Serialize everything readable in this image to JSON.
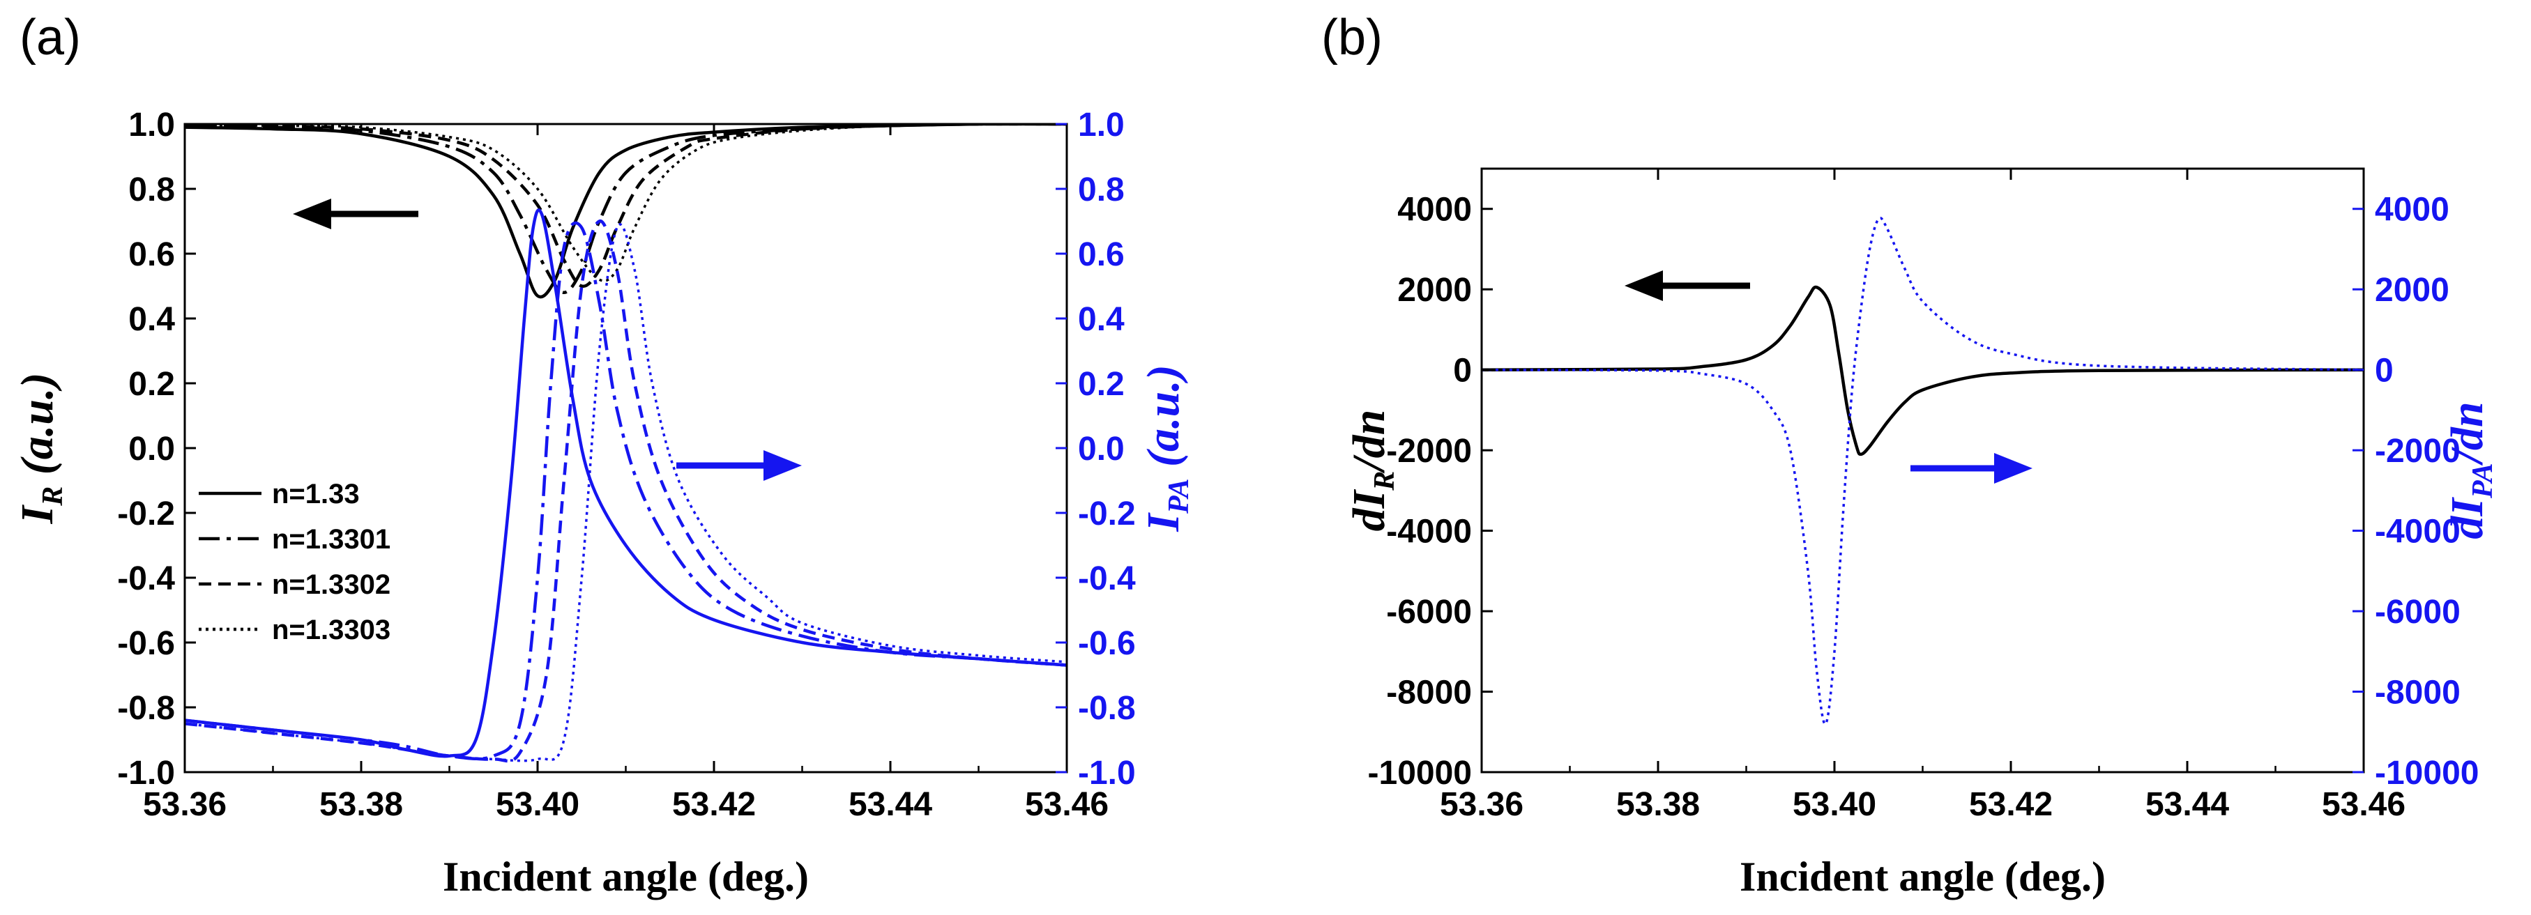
{
  "colors": {
    "black": "#000000",
    "blue": "#1515f0"
  },
  "chart_data": [
    {
      "panel_label": "(a)",
      "type": "line",
      "xlabel": "Incident angle (deg.)",
      "ylabel_left": {
        "main": "I",
        "sub": "R",
        "rest": " (a.u.)"
      },
      "ylabel_right": {
        "main": "I",
        "sub": "PA",
        "rest": " (a.u.)"
      },
      "xlim": [
        53.36,
        53.46
      ],
      "ylim_left": [
        -1.0,
        1.0
      ],
      "ylim_right": [
        -1.0,
        1.0
      ],
      "x_ticks": [
        "53.36",
        "53.38",
        "53.40",
        "53.42",
        "53.44",
        "53.46"
      ],
      "y_ticks_left": [
        "1.0",
        "0.8",
        "0.6",
        "0.4",
        "0.2",
        "0.0",
        "-0.2",
        "-0.4",
        "-0.6",
        "-0.8",
        "-1.0"
      ],
      "y_ticks_right": [
        "1.0",
        "0.8",
        "0.6",
        "0.4",
        "0.2",
        "0.0",
        "-0.2",
        "-0.4",
        "-0.6",
        "-0.8",
        "-1.0"
      ],
      "legend": [
        "n=1.33",
        "n=1.3301",
        "n=1.3302",
        "n=1.3303"
      ],
      "series": [
        {
          "name": "I_R n=1.33",
          "axis": "left",
          "color": "black",
          "dash": "solid",
          "x": [
            53.36,
            53.37,
            53.38,
            53.39,
            53.395,
            53.398,
            53.4,
            53.402,
            53.404,
            53.407,
            53.41,
            53.415,
            53.42,
            53.43,
            53.44,
            53.45,
            53.46
          ],
          "y": [
            0.99,
            0.985,
            0.97,
            0.9,
            0.78,
            0.6,
            0.47,
            0.52,
            0.68,
            0.85,
            0.92,
            0.96,
            0.975,
            0.99,
            0.995,
            1.0,
            1.0
          ]
        },
        {
          "name": "I_R n=1.3301",
          "axis": "left",
          "color": "black",
          "dash": "dashdot",
          "x": [
            53.36,
            53.37,
            53.38,
            53.39,
            53.395,
            53.398,
            53.401,
            53.403,
            53.405,
            53.407,
            53.41,
            53.415,
            53.42,
            53.43,
            53.44,
            53.45,
            53.46
          ],
          "y": [
            0.995,
            0.99,
            0.98,
            0.93,
            0.85,
            0.72,
            0.55,
            0.48,
            0.55,
            0.7,
            0.85,
            0.93,
            0.965,
            0.985,
            0.995,
            1.0,
            1.0
          ]
        },
        {
          "name": "I_R n=1.3302",
          "axis": "left",
          "color": "black",
          "dash": "dash",
          "x": [
            53.36,
            53.37,
            53.38,
            53.39,
            53.395,
            53.4,
            53.403,
            53.405,
            53.407,
            53.409,
            53.412,
            53.417,
            53.42,
            53.43,
            53.44,
            53.45,
            53.46
          ],
          "y": [
            0.995,
            0.993,
            0.985,
            0.95,
            0.89,
            0.75,
            0.58,
            0.5,
            0.55,
            0.68,
            0.83,
            0.93,
            0.955,
            0.985,
            0.995,
            1.0,
            1.0
          ]
        },
        {
          "name": "I_R n=1.3303",
          "axis": "left",
          "color": "black",
          "dash": "dot",
          "x": [
            53.36,
            53.37,
            53.38,
            53.39,
            53.395,
            53.4,
            53.404,
            53.407,
            53.409,
            53.411,
            53.414,
            53.418,
            53.422,
            53.43,
            53.44,
            53.45,
            53.46
          ],
          "y": [
            0.996,
            0.995,
            0.99,
            0.96,
            0.92,
            0.8,
            0.62,
            0.52,
            0.55,
            0.68,
            0.83,
            0.92,
            0.955,
            0.98,
            0.995,
            1.0,
            1.0
          ]
        },
        {
          "name": "I_PA n=1.33",
          "axis": "right",
          "color": "blue",
          "dash": "solid",
          "x": [
            53.36,
            53.37,
            53.38,
            53.385,
            53.39,
            53.393,
            53.395,
            53.397,
            53.3985,
            53.3995,
            53.4005,
            53.402,
            53.404,
            53.406,
            53.41,
            53.415,
            53.42,
            53.43,
            53.44,
            53.45,
            53.46
          ],
          "y": [
            -0.84,
            -0.87,
            -0.9,
            -0.93,
            -0.95,
            -0.9,
            -0.6,
            -0.1,
            0.4,
            0.68,
            0.72,
            0.5,
            0.15,
            -0.1,
            -0.3,
            -0.45,
            -0.53,
            -0.6,
            -0.63,
            -0.65,
            -0.67
          ]
        },
        {
          "name": "I_PA n=1.3301",
          "axis": "right",
          "color": "blue",
          "dash": "dashdot",
          "x": [
            53.36,
            53.37,
            53.38,
            53.385,
            53.39,
            53.395,
            53.398,
            53.4,
            53.4015,
            53.403,
            53.405,
            53.407,
            53.409,
            53.412,
            53.417,
            53.422,
            53.43,
            53.44,
            53.45,
            53.46
          ],
          "y": [
            -0.84,
            -0.87,
            -0.9,
            -0.92,
            -0.95,
            -0.95,
            -0.85,
            -0.4,
            0.2,
            0.62,
            0.68,
            0.45,
            0.12,
            -0.15,
            -0.38,
            -0.5,
            -0.58,
            -0.63,
            -0.65,
            -0.67
          ]
        },
        {
          "name": "I_PA n=1.3302",
          "axis": "right",
          "color": "blue",
          "dash": "dash",
          "x": [
            53.36,
            53.37,
            53.38,
            53.385,
            53.39,
            53.395,
            53.398,
            53.401,
            53.403,
            53.405,
            53.407,
            53.409,
            53.411,
            53.414,
            53.419,
            53.424,
            53.43,
            53.44,
            53.45,
            53.46
          ],
          "y": [
            -0.85,
            -0.88,
            -0.91,
            -0.93,
            -0.95,
            -0.96,
            -0.94,
            -0.7,
            -0.1,
            0.5,
            0.7,
            0.55,
            0.2,
            -0.1,
            -0.35,
            -0.48,
            -0.56,
            -0.62,
            -0.65,
            -0.67
          ]
        },
        {
          "name": "I_PA n=1.3303",
          "axis": "right",
          "color": "blue",
          "dash": "dot",
          "x": [
            53.36,
            53.37,
            53.38,
            53.385,
            53.39,
            53.395,
            53.4,
            53.403,
            53.405,
            53.407,
            53.409,
            53.411,
            53.413,
            53.416,
            53.421,
            53.426,
            53.43,
            53.44,
            53.45,
            53.46
          ],
          "y": [
            -0.85,
            -0.88,
            -0.91,
            -0.93,
            -0.95,
            -0.96,
            -0.96,
            -0.9,
            -0.4,
            0.3,
            0.68,
            0.55,
            0.2,
            -0.1,
            -0.33,
            -0.46,
            -0.54,
            -0.61,
            -0.64,
            -0.66
          ]
        }
      ]
    },
    {
      "panel_label": "(b)",
      "type": "line",
      "xlabel": "Incident angle (deg.)",
      "ylabel_left": {
        "main": "dI",
        "sub": "R",
        "rest": "/dn"
      },
      "ylabel_right": {
        "main": "dI",
        "sub": "PA",
        "rest": "/dn"
      },
      "xlim": [
        53.36,
        53.46
      ],
      "ylim_left": [
        -10000,
        5000
      ],
      "ylim_right": [
        -10000,
        5000
      ],
      "x_ticks": [
        "53.36",
        "53.38",
        "53.40",
        "53.42",
        "53.44",
        "53.46"
      ],
      "y_ticks_left": [
        "4000",
        "2000",
        "0",
        "-2000",
        "-4000",
        "-6000",
        "-8000",
        "-10000"
      ],
      "y_ticks_right": [
        "4000",
        "2000",
        "0",
        "-2000",
        "-4000",
        "-6000",
        "-8000",
        "-10000"
      ],
      "series": [
        {
          "name": "dI_R/dn",
          "axis": "left",
          "color": "black",
          "dash": "solid",
          "x": [
            53.36,
            53.38,
            53.385,
            53.39,
            53.393,
            53.395,
            53.397,
            53.398,
            53.3995,
            53.4005,
            53.4015,
            53.4025,
            53.403,
            53.404,
            53.406,
            53.408,
            53.41,
            53.415,
            53.42,
            53.43,
            53.46
          ],
          "y": [
            0,
            20,
            80,
            250,
            600,
            1100,
            1800,
            2050,
            1600,
            400,
            -1000,
            -1900,
            -2100,
            -1900,
            -1300,
            -800,
            -500,
            -200,
            -80,
            -20,
            0
          ]
        },
        {
          "name": "dI_PA/dn",
          "axis": "right",
          "color": "blue",
          "dash": "dot",
          "x": [
            53.36,
            53.38,
            53.385,
            53.39,
            53.393,
            53.395,
            53.397,
            53.398,
            53.399,
            53.4,
            53.401,
            53.402,
            53.403,
            53.404,
            53.405,
            53.406,
            53.408,
            53.41,
            53.415,
            53.42,
            53.43,
            53.46
          ],
          "y": [
            0,
            -20,
            -100,
            -350,
            -1000,
            -2000,
            -5000,
            -7500,
            -8800,
            -7000,
            -3500,
            -500,
            1500,
            3000,
            3750,
            3500,
            2500,
            1700,
            800,
            400,
            100,
            0
          ]
        }
      ]
    }
  ]
}
